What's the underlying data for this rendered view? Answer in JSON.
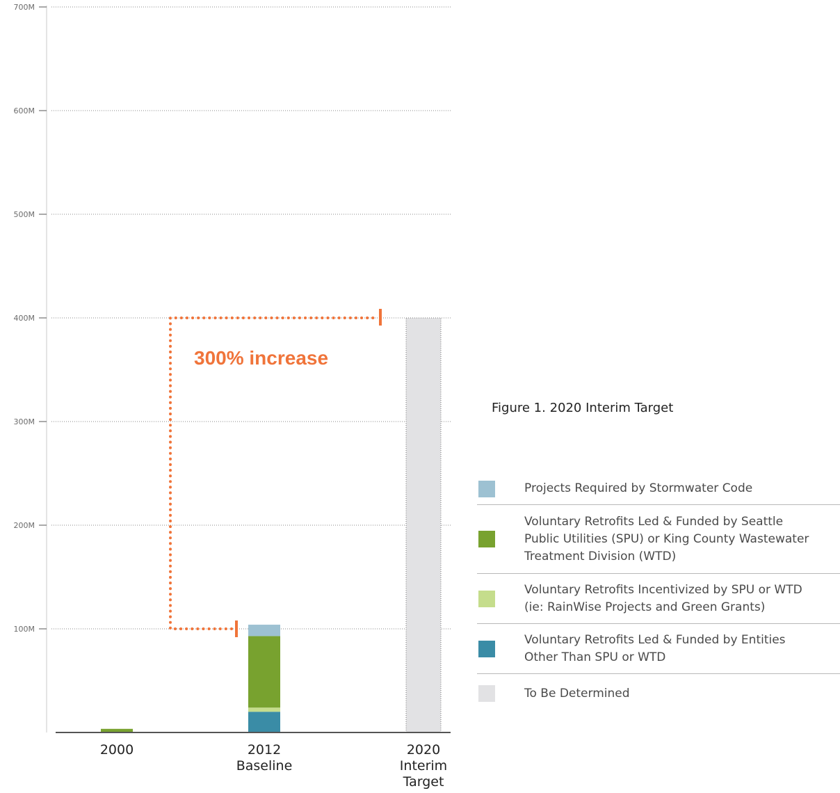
{
  "chart_data": {
    "type": "bar",
    "stacked": true,
    "title": "Figure 1.  2020 Interim Target",
    "categories": [
      [
        "2000"
      ],
      [
        "2012",
        "Baseline"
      ],
      [
        "2020",
        "Interim",
        "Target"
      ]
    ],
    "ylim": [
      0,
      700000000
    ],
    "yticks": [
      100000000,
      200000000,
      300000000,
      400000000,
      500000000,
      600000000,
      700000000
    ],
    "ytick_labels": [
      "100M",
      "200M",
      "300M",
      "400M",
      "500M",
      "600M",
      "700M"
    ],
    "grid": true,
    "legend_position": "right",
    "series": [
      {
        "name": "Voluntary Retrofits Led & Funded by Entities Other Than SPU or WTD",
        "color": "#3a8ca6",
        "values": [
          0,
          20000000,
          0
        ]
      },
      {
        "name": "Voluntary Retrofits Incentivized by SPU or WTD (ie: RainWise Projects and Green Grants)",
        "color": "#c5dd8c",
        "values": [
          0,
          4000000,
          0
        ]
      },
      {
        "name": "Voluntary Retrofits Led & Funded by Seattle Public Utilities (SPU) or King County Wastewater Treatment Division (WTD)",
        "color": "#78a22f",
        "values": [
          3500000,
          69000000,
          0
        ]
      },
      {
        "name": "Projects Required by Stormwater Code",
        "color": "#9dc1d2",
        "values": [
          0,
          11000000,
          0
        ]
      },
      {
        "name": "To Be Determined",
        "color": "#e2e2e4",
        "values": [
          0,
          0,
          400000000
        ]
      }
    ],
    "annotation": {
      "text": "300% increase",
      "color": "#f0743a",
      "from_value": 100000000,
      "to_value": 400000000
    }
  },
  "legend_items": [
    {
      "label_lines": [
        "Projects Required by Stormwater Code"
      ],
      "color": "#9dc1d2"
    },
    {
      "label_lines": [
        "Voluntary Retrofits Led & Funded by Seattle",
        "Public Utilities (SPU) or King County Wastewater",
        "Treatment Division (WTD)"
      ],
      "color": "#78a22f"
    },
    {
      "label_lines": [
        "Voluntary Retrofits Incentivized by SPU or WTD",
        "(ie: RainWise Projects and Green Grants)"
      ],
      "color": "#c5dd8c"
    },
    {
      "label_lines": [
        "Voluntary Retrofits Led & Funded by Entities",
        "Other Than SPU or WTD"
      ],
      "color": "#3a8ca6"
    },
    {
      "label_lines": [
        "To Be Determined"
      ],
      "color": "#e2e2e4"
    }
  ]
}
